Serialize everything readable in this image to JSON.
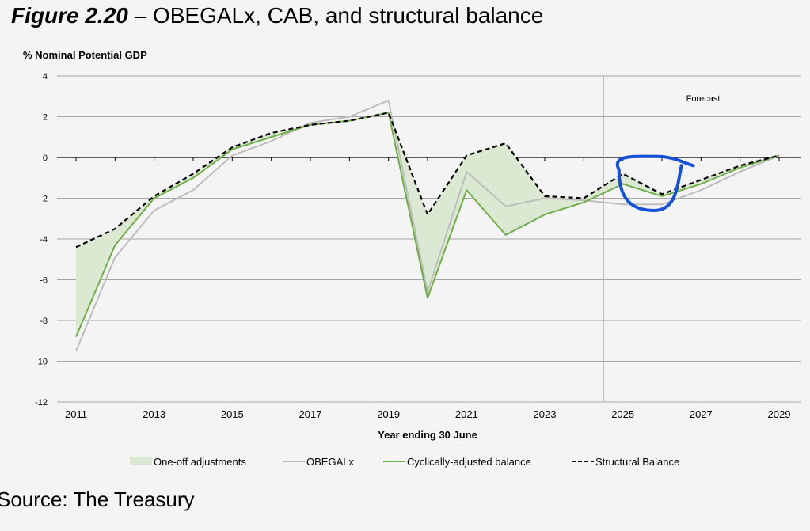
{
  "figure": {
    "number": "Figure 2.20",
    "title": " – OBEGALx, CAB, and structural balance",
    "source": "Source: The Treasury"
  },
  "chart_data": {
    "type": "line",
    "ylabel": "% Nominal Potential GDP",
    "xlabel": "Year ending 30 June",
    "ylim": [
      -12,
      4
    ],
    "yticks": [
      4,
      2,
      0,
      -2,
      -4,
      -6,
      -8,
      -10,
      -12
    ],
    "xlim": [
      2011,
      2029
    ],
    "xticks": [
      2011,
      2013,
      2015,
      2017,
      2019,
      2021,
      2023,
      2025,
      2027,
      2029
    ],
    "grid": true,
    "legend_position": "bottom",
    "forecast_label": "Forecast",
    "forecast_start": 2024.5,
    "x": [
      2011,
      2012,
      2013,
      2014,
      2015,
      2016,
      2017,
      2018,
      2019,
      2020,
      2021,
      2022,
      2023,
      2024,
      2025,
      2026,
      2027,
      2028,
      2029
    ],
    "series": [
      {
        "name": "One-off adjustments",
        "kind": "area",
        "color": "#dce9d2",
        "lower": "Cyclically-adjusted balance",
        "upper": "Structural Balance"
      },
      {
        "name": "OBEGALx",
        "kind": "line",
        "color": "#bdbdbd",
        "values": [
          -9.5,
          -4.9,
          -2.6,
          -1.6,
          0.1,
          0.8,
          1.7,
          2.0,
          2.8,
          -6.6,
          -0.7,
          -2.4,
          -2.0,
          -2.1,
          -2.3,
          -2.3,
          -1.6,
          -0.7,
          0.1
        ]
      },
      {
        "name": "Cyclically-adjusted balance",
        "kind": "line",
        "color": "#70ad47",
        "values": [
          -8.8,
          -4.3,
          -2.0,
          -1.0,
          0.4,
          1.0,
          1.6,
          1.8,
          2.2,
          -6.9,
          -1.6,
          -3.8,
          -2.8,
          -2.2,
          -1.3,
          -1.9,
          -1.3,
          -0.5,
          0.1
        ]
      },
      {
        "name": "Structural Balance",
        "kind": "dashed",
        "color": "#000000",
        "values": [
          -4.4,
          -3.5,
          -1.9,
          -0.8,
          0.5,
          1.2,
          1.6,
          1.8,
          2.2,
          -2.8,
          0.1,
          0.7,
          -1.9,
          -2.0,
          -0.8,
          -1.8,
          -1.1,
          -0.4,
          0.1
        ]
      }
    ],
    "annotation": {
      "kind": "hand-drawn-circle",
      "color": "#1550d8",
      "around_years": [
        2024.9,
        2026.8
      ]
    }
  }
}
